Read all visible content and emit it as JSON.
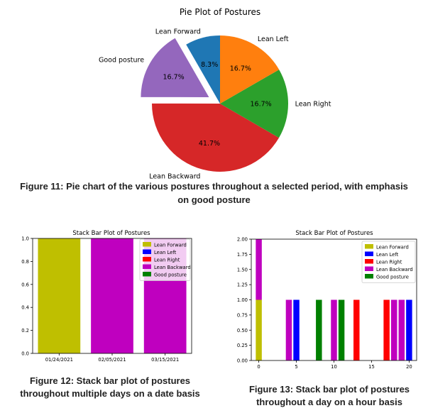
{
  "chart_data": [
    {
      "type": "pie",
      "title": "Pie Plot of Postures",
      "slices": [
        {
          "label": "Lean Forward",
          "value": 8.3,
          "pct_label": "8.3%",
          "color": "#1f77b4",
          "exploded": false
        },
        {
          "label": "Good posture",
          "value": 16.7,
          "pct_label": "16.7%",
          "color": "#9467bd",
          "exploded": true
        },
        {
          "label": "Lean Backward",
          "value": 41.7,
          "pct_label": "41.7%",
          "color": "#d62728",
          "exploded": false
        },
        {
          "label": "Lean Right",
          "value": 16.7,
          "pct_label": "16.7%",
          "color": "#2ca02c",
          "exploded": false
        },
        {
          "label": "Lean Left",
          "value": 16.7,
          "pct_label": "16.7%",
          "color": "#ff7f0e",
          "exploded": false
        }
      ],
      "caption": "Figure 11: Pie chart of the various postures throughout a selected period, with emphasis on good posture"
    },
    {
      "type": "bar",
      "stacked": true,
      "title": "Stack Bar Plot of Postures",
      "categories": [
        "01/24/2021",
        "02/05/2021",
        "03/15/2021"
      ],
      "ylim": [
        0,
        1.0
      ],
      "yticks": [
        "0.0",
        "0.2",
        "0.4",
        "0.6",
        "0.8",
        "1.0"
      ],
      "legend": "top-right",
      "series": [
        {
          "name": "Lean Forward",
          "color": "#bfbf00",
          "values": [
            1,
            0,
            0
          ]
        },
        {
          "name": "Lean Left",
          "color": "#0000ff",
          "values": [
            0,
            0,
            0
          ]
        },
        {
          "name": "Lean Right",
          "color": "#ff0000",
          "values": [
            0,
            0,
            0
          ]
        },
        {
          "name": "Lean Backward",
          "color": "#bf00bf",
          "values": [
            0,
            1,
            1
          ]
        },
        {
          "name": "Good posture",
          "color": "#008000",
          "values": [
            0,
            0,
            0
          ]
        }
      ],
      "caption": "Figure 12: Stack bar plot of postures throughout multiple days on a date basis"
    },
    {
      "type": "bar",
      "stacked": true,
      "title": "Stack Bar Plot of Postures",
      "xlim": [
        -1,
        21
      ],
      "xticks": [
        0,
        5,
        10,
        15,
        20
      ],
      "ylim": [
        0,
        2.0
      ],
      "yticks": [
        "0.00",
        "0.25",
        "0.50",
        "0.75",
        "1.00",
        "1.25",
        "1.50",
        "1.75",
        "2.00"
      ],
      "legend": "top-right",
      "series": [
        {
          "name": "Lean Forward",
          "color": "#bfbf00"
        },
        {
          "name": "Lean Left",
          "color": "#0000ff"
        },
        {
          "name": "Lean Right",
          "color": "#ff0000"
        },
        {
          "name": "Lean Backward",
          "color": "#bf00bf"
        },
        {
          "name": "Good posture",
          "color": "#008000"
        }
      ],
      "bars": [
        {
          "x": 0,
          "segments": [
            {
              "series": "Lean Forward",
              "value": 1
            },
            {
              "series": "Lean Backward",
              "value": 1
            }
          ]
        },
        {
          "x": 4,
          "segments": [
            {
              "series": "Lean Backward",
              "value": 1
            }
          ]
        },
        {
          "x": 5,
          "segments": [
            {
              "series": "Lean Left",
              "value": 1
            }
          ]
        },
        {
          "x": 8,
          "segments": [
            {
              "series": "Good posture",
              "value": 1
            }
          ]
        },
        {
          "x": 10,
          "segments": [
            {
              "series": "Lean Backward",
              "value": 1
            }
          ]
        },
        {
          "x": 11,
          "segments": [
            {
              "series": "Good posture",
              "value": 1
            }
          ]
        },
        {
          "x": 13,
          "segments": [
            {
              "series": "Lean Right",
              "value": 1
            }
          ]
        },
        {
          "x": 17,
          "segments": [
            {
              "series": "Lean Right",
              "value": 1
            }
          ]
        },
        {
          "x": 18,
          "segments": [
            {
              "series": "Lean Backward",
              "value": 1
            }
          ]
        },
        {
          "x": 19,
          "segments": [
            {
              "series": "Lean Backward",
              "value": 1
            }
          ]
        },
        {
          "x": 20,
          "segments": [
            {
              "series": "Lean Left",
              "value": 1
            }
          ]
        }
      ],
      "caption": "Figure 13: Stack bar plot of postures throughout a day on a hour basis"
    }
  ]
}
